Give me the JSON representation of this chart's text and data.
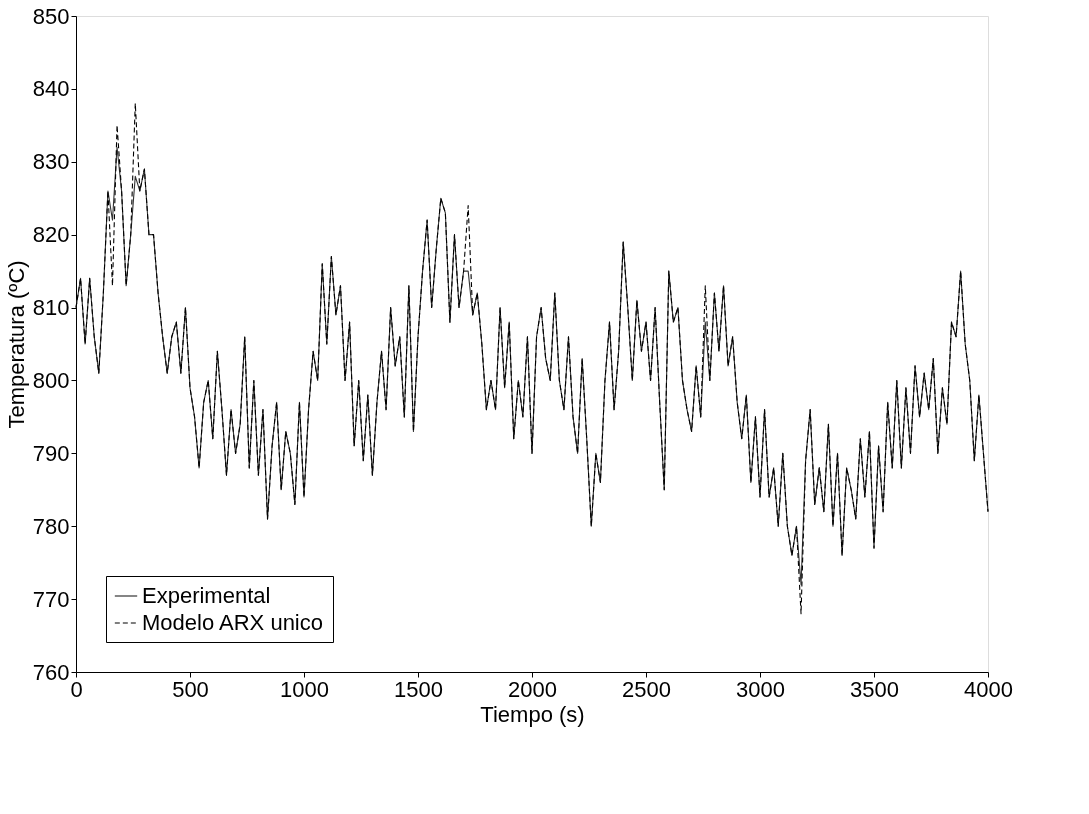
{
  "chart_data": {
    "type": "line",
    "xlabel": "Tiempo (s)",
    "ylabel": "Temperatura (ºC)",
    "x": [
      0,
      20,
      40,
      60,
      80,
      100,
      120,
      140,
      160,
      180,
      200,
      220,
      240,
      260,
      280,
      300,
      320,
      340,
      360,
      380,
      400,
      420,
      440,
      460,
      480,
      500,
      520,
      540,
      560,
      580,
      600,
      620,
      640,
      660,
      680,
      700,
      720,
      740,
      760,
      780,
      800,
      820,
      840,
      860,
      880,
      900,
      920,
      940,
      960,
      980,
      1000,
      1020,
      1040,
      1060,
      1080,
      1100,
      1120,
      1140,
      1160,
      1180,
      1200,
      1220,
      1240,
      1260,
      1280,
      1300,
      1320,
      1340,
      1360,
      1380,
      1400,
      1420,
      1440,
      1460,
      1480,
      1500,
      1520,
      1540,
      1560,
      1580,
      1600,
      1620,
      1640,
      1660,
      1680,
      1700,
      1720,
      1740,
      1760,
      1780,
      1800,
      1820,
      1840,
      1860,
      1880,
      1900,
      1920,
      1940,
      1960,
      1980,
      2000,
      2020,
      2040,
      2060,
      2080,
      2100,
      2120,
      2140,
      2160,
      2180,
      2200,
      2220,
      2240,
      2260,
      2280,
      2300,
      2320,
      2340,
      2360,
      2380,
      2400,
      2420,
      2440,
      2460,
      2480,
      2500,
      2520,
      2540,
      2560,
      2580,
      2600,
      2620,
      2640,
      2660,
      2680,
      2700,
      2720,
      2740,
      2760,
      2780,
      2800,
      2820,
      2840,
      2860,
      2880,
      2900,
      2920,
      2940,
      2960,
      2980,
      3000,
      3020,
      3040,
      3060,
      3080,
      3100,
      3120,
      3140,
      3160,
      3180,
      3200,
      3220,
      3240,
      3260,
      3280,
      3300,
      3320,
      3340,
      3360,
      3380,
      3400,
      3420,
      3440,
      3460,
      3480,
      3500,
      3520,
      3540,
      3560,
      3580,
      3600,
      3620,
      3640,
      3660,
      3680,
      3700,
      3720,
      3740,
      3760,
      3780,
      3800,
      3820,
      3840,
      3860,
      3880,
      3900,
      3920,
      3940,
      3960,
      3980,
      4000
    ],
    "series": [
      {
        "name": "Experimental",
        "color": "#333333",
        "line_style": "solid",
        "values": [
          810,
          814,
          805,
          814,
          806,
          801,
          812,
          826,
          822,
          832,
          826,
          813,
          820,
          828,
          826,
          829,
          820,
          820,
          812,
          806,
          801,
          806,
          808,
          801,
          810,
          799,
          795,
          788,
          797,
          800,
          792,
          804,
          796,
          787,
          796,
          790,
          794,
          806,
          788,
          800,
          787,
          796,
          781,
          791,
          797,
          785,
          793,
          790,
          783,
          797,
          784,
          796,
          804,
          800,
          816,
          805,
          817,
          809,
          813,
          800,
          808,
          791,
          800,
          789,
          798,
          787,
          797,
          804,
          796,
          810,
          802,
          806,
          795,
          813,
          793,
          806,
          815,
          822,
          810,
          818,
          825,
          823,
          808,
          820,
          810,
          815,
          815,
          809,
          812,
          805,
          796,
          800,
          796,
          810,
          799,
          808,
          792,
          800,
          795,
          806,
          790,
          806,
          810,
          803,
          800,
          812,
          800,
          796,
          806,
          795,
          790,
          803,
          792,
          780,
          790,
          786,
          800,
          808,
          796,
          804,
          819,
          810,
          800,
          811,
          804,
          808,
          800,
          810,
          797,
          785,
          815,
          808,
          810,
          800,
          796,
          793,
          802,
          795,
          808,
          800,
          812,
          804,
          813,
          802,
          806,
          797,
          792,
          798,
          786,
          795,
          784,
          796,
          784,
          788,
          780,
          790,
          780,
          776,
          780,
          772,
          789,
          796,
          783,
          788,
          782,
          794,
          780,
          790,
          776,
          788,
          785,
          781,
          792,
          784,
          793,
          777,
          791,
          782,
          797,
          788,
          800,
          788,
          799,
          790,
          802,
          795,
          801,
          796,
          803,
          790,
          799,
          794,
          808,
          806,
          815,
          805,
          800,
          789,
          798,
          790,
          782
        ]
      },
      {
        "name": "Modelo ARX unico",
        "color": "#000000",
        "line_style": "dashed",
        "values": [
          810,
          814,
          805,
          814,
          806,
          801,
          812,
          826,
          813,
          835,
          826,
          813,
          820,
          838,
          826,
          829,
          820,
          820,
          812,
          806,
          801,
          806,
          808,
          801,
          810,
          799,
          795,
          788,
          797,
          800,
          792,
          804,
          796,
          787,
          796,
          790,
          794,
          806,
          788,
          800,
          787,
          796,
          781,
          791,
          797,
          785,
          793,
          790,
          783,
          797,
          784,
          796,
          804,
          800,
          816,
          805,
          817,
          809,
          813,
          800,
          808,
          791,
          800,
          789,
          798,
          787,
          797,
          804,
          796,
          810,
          802,
          806,
          795,
          813,
          793,
          806,
          815,
          822,
          810,
          818,
          825,
          823,
          808,
          820,
          810,
          815,
          824,
          809,
          812,
          805,
          796,
          800,
          796,
          810,
          799,
          808,
          792,
          800,
          795,
          806,
          790,
          806,
          810,
          803,
          800,
          812,
          800,
          796,
          806,
          795,
          790,
          803,
          792,
          780,
          790,
          786,
          800,
          808,
          796,
          804,
          819,
          810,
          800,
          811,
          804,
          808,
          800,
          810,
          797,
          785,
          815,
          808,
          810,
          800,
          796,
          793,
          802,
          795,
          813,
          800,
          812,
          804,
          813,
          802,
          806,
          797,
          792,
          798,
          786,
          795,
          784,
          796,
          784,
          788,
          780,
          790,
          780,
          776,
          780,
          768,
          789,
          796,
          783,
          788,
          782,
          794,
          780,
          790,
          776,
          788,
          785,
          781,
          792,
          784,
          793,
          777,
          791,
          782,
          797,
          788,
          800,
          788,
          799,
          790,
          802,
          795,
          801,
          796,
          803,
          790,
          799,
          794,
          808,
          806,
          815,
          805,
          800,
          789,
          798,
          790,
          782
        ]
      }
    ],
    "xlim": [
      0,
      4000
    ],
    "xticks": [
      0,
      500,
      1000,
      1500,
      2000,
      2500,
      3000,
      3500,
      4000
    ],
    "ylim": [
      760,
      850
    ],
    "yticks": [
      760,
      770,
      780,
      790,
      800,
      810,
      820,
      830,
      840,
      850
    ],
    "grid": false,
    "legend": "bottom left"
  }
}
